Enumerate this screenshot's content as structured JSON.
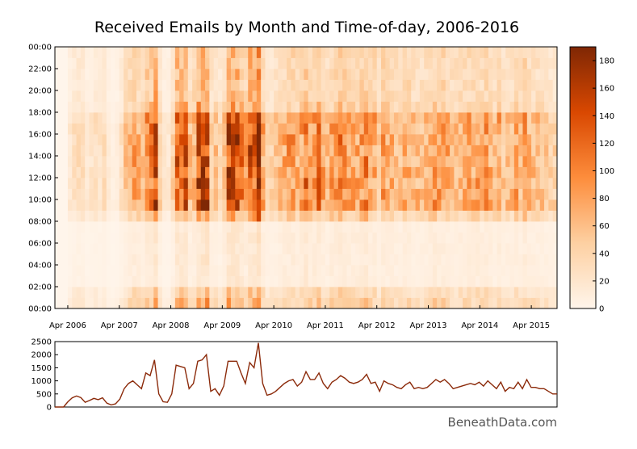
{
  "chart_data": [
    {
      "type": "heatmap",
      "title": "Received Emails by Month and Time-of-day, 2006-2016",
      "x_start": "2006-01",
      "x_end": "2016-04",
      "x_tick_labels": [
        "Apr 2006",
        "Apr 2007",
        "Apr 2008",
        "Apr 2009",
        "Apr 2010",
        "Apr 2011",
        "Apr 2012",
        "Apr 2013",
        "Apr 2014",
        "Apr 2015"
      ],
      "y_tick_labels": [
        "00:00",
        "02:00",
        "04:00",
        "06:00",
        "08:00",
        "10:00",
        "12:00",
        "14:00",
        "16:00",
        "18:00",
        "20:00",
        "22:00",
        "00:00"
      ],
      "colorbar": {
        "min": 0,
        "max": 190,
        "tick_labels": [
          "0",
          "20",
          "40",
          "60",
          "80",
          "100",
          "120",
          "140",
          "160",
          "180"
        ],
        "tick_values": [
          0,
          20,
          40,
          60,
          80,
          100,
          120,
          140,
          160,
          180
        ],
        "colors": [
          "#fff5eb",
          "#fdd0a2",
          "#fd8d3c",
          "#d94801",
          "#7f2704"
        ]
      },
      "rows_per_day": 24
    },
    {
      "type": "line",
      "xlabel": "",
      "ylabel": "",
      "ylim": [
        0,
        2500
      ],
      "y_tick_labels": [
        "0",
        "500",
        "1000",
        "1500",
        "2000",
        "2500"
      ],
      "y_tick_values": [
        0,
        500,
        1000,
        1500,
        2000,
        2500
      ],
      "line_color": "#8b2a0a",
      "values": [
        0,
        0,
        0,
        200,
        350,
        420,
        360,
        180,
        250,
        330,
        280,
        350,
        150,
        80,
        120,
        300,
        700,
        900,
        1000,
        850,
        700,
        1300,
        1200,
        1800,
        500,
        200,
        180,
        500,
        1600,
        1550,
        1500,
        700,
        900,
        1750,
        1800,
        2000,
        600,
        700,
        450,
        800,
        1750,
        1750,
        1750,
        1300,
        900,
        1700,
        1500,
        2450,
        900,
        450,
        500,
        600,
        750,
        900,
        1000,
        1050,
        800,
        950,
        1350,
        1050,
        1050,
        1300,
        900,
        700,
        950,
        1050,
        1200,
        1100,
        950,
        900,
        950,
        1050,
        1250,
        900,
        950,
        600,
        1000,
        900,
        850,
        750,
        700,
        850,
        950,
        700,
        750,
        700,
        750,
        900,
        1050,
        950,
        1050,
        900,
        700,
        750,
        800,
        850,
        900,
        850,
        950,
        800,
        1000,
        850,
        700,
        950,
        600,
        750,
        700,
        950,
        700,
        1050,
        750,
        750,
        700,
        700,
        600,
        500,
        500
      ]
    }
  ],
  "watermark": "BeneathData.com"
}
